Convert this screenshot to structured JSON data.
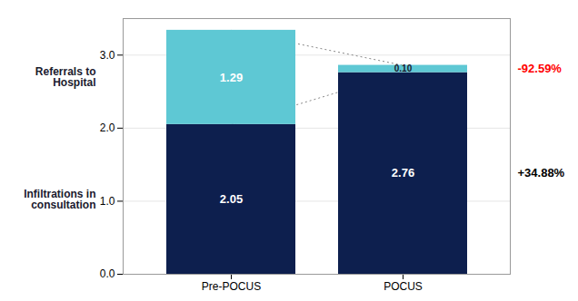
{
  "chart_data": {
    "type": "bar",
    "stacked": true,
    "categories": [
      "Pre-POCUS",
      "POCUS"
    ],
    "series": [
      {
        "name": "Infiltrations in\nconsultation",
        "color": "#0d1f4e",
        "values": [
          2.05,
          2.76
        ],
        "value_labels": [
          "2.05",
          "2.76"
        ]
      },
      {
        "name": "Referrals to\nHospital",
        "color": "#5ec8d4",
        "values": [
          1.29,
          0.1
        ],
        "value_labels": [
          "1.29",
          "0.10"
        ]
      }
    ],
    "data_labels": true,
    "ylim": [
      0,
      3.5
    ],
    "yticks": [
      0,
      1,
      2,
      3
    ],
    "grid": true,
    "annotations": [
      {
        "text": "-92.59%",
        "color": "#ff0000",
        "category": "POCUS",
        "series": "Referrals to\nHospital"
      },
      {
        "text": "+34.88%",
        "category": "POCUS",
        "series": "Infiltrations in\nconsultation"
      }
    ]
  }
}
